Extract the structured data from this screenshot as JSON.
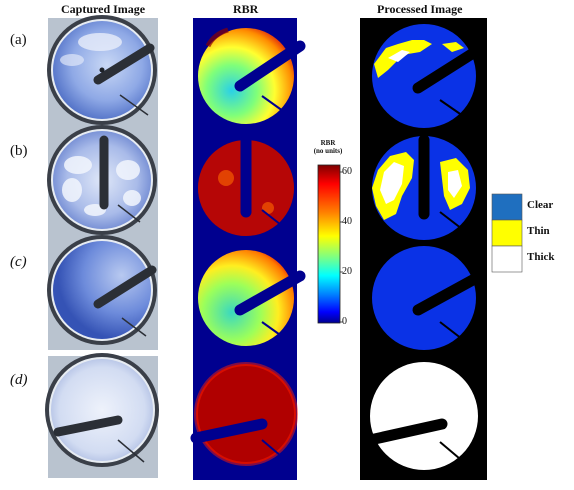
{
  "headers": {
    "captured": "Captured Image",
    "rbr": "RBR",
    "processed": "Processed Image"
  },
  "rows": [
    {
      "label": "(a)",
      "italic": false
    },
    {
      "label": "(b)",
      "italic": false
    },
    {
      "label": "(c)",
      "italic": true
    },
    {
      "label": "(d)",
      "italic": true
    }
  ],
  "colorbar": {
    "title_line1": "RBR",
    "title_line2": "(no units)",
    "ticks": [
      "60",
      "40",
      "20",
      "0"
    ],
    "colormap": [
      "#7f0000",
      "#ff0000",
      "#ff8000",
      "#ffff00",
      "#80ff80",
      "#00ffff",
      "#0080ff",
      "#0000ff",
      "#00008f"
    ]
  },
  "legend": {
    "items": [
      {
        "label": "Clear",
        "color": "#1f6fbf"
      },
      {
        "label": "Thin",
        "color": "#ffff00"
      },
      {
        "label": "Thick",
        "color": "#ffffff"
      }
    ]
  }
}
